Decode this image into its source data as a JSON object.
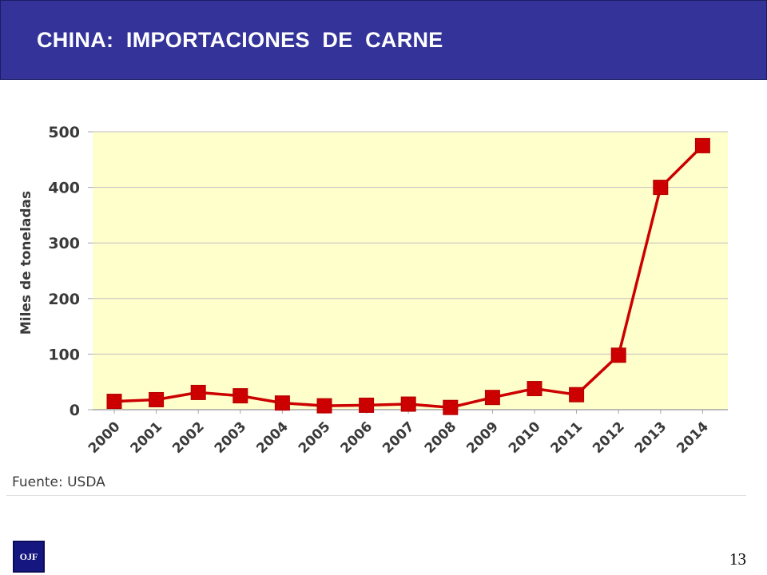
{
  "slide": {
    "title": "CHINA:  IMPORTACIONES  DE  CARNE",
    "source": "Fuente: USDA",
    "logo_text": "OJF",
    "page_number": "13"
  },
  "colors": {
    "title_bar": "#333399",
    "plot_background": "#ffffcc",
    "line": "#cc0000",
    "marker": "#cc0000",
    "grid": "#bfbfbf"
  },
  "chart_data": {
    "type": "line",
    "title": "",
    "xlabel": "",
    "ylabel": "Miles de toneladas",
    "categories": [
      "2000",
      "2001",
      "2002",
      "2003",
      "2004",
      "2005",
      "2006",
      "2007",
      "2008",
      "2009",
      "2010",
      "2011",
      "2012",
      "2013",
      "2014"
    ],
    "series": [
      {
        "values": [
          15,
          18,
          31,
          25,
          12,
          7,
          8,
          10,
          4,
          22,
          38,
          27,
          98,
          400,
          475
        ]
      }
    ],
    "ylim": [
      0,
      500
    ],
    "yticks": [
      0,
      100,
      200,
      300,
      400,
      500
    ],
    "grid": true,
    "legend": "none",
    "marker": "square"
  }
}
